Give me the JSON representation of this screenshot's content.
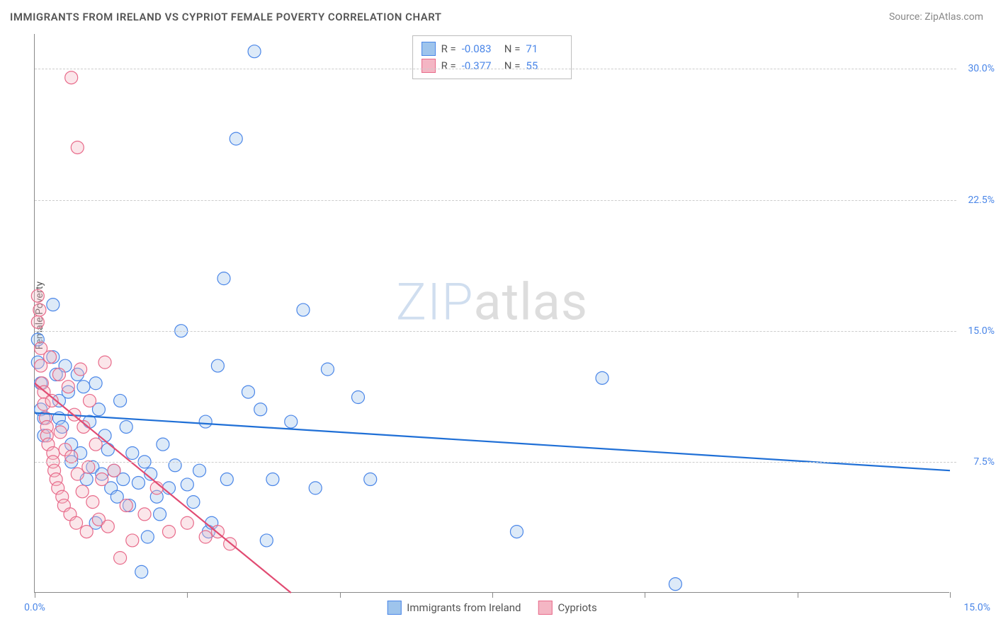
{
  "title": "IMMIGRANTS FROM IRELAND VS CYPRIOT FEMALE POVERTY CORRELATION CHART",
  "source_label": "Source: ZipAtlas.com",
  "ylabel": "Female Poverty",
  "watermark_z": "ZIP",
  "watermark_rest": "atlas",
  "chart": {
    "type": "scatter",
    "xlim": [
      0,
      15
    ],
    "ylim": [
      0,
      32
    ],
    "background_color": "#ffffff",
    "grid_color": "#cccccc",
    "grid_dash": "4,4",
    "axis_color": "#888888",
    "tick_label_color": "#4a86e8",
    "axis_label_color": "#555555",
    "y_gridlines": [
      7.5,
      15.0,
      22.5,
      30.0
    ],
    "y_tick_labels": [
      "7.5%",
      "15.0%",
      "22.5%",
      "30.0%"
    ],
    "x_ticks": [
      0,
      2.5,
      5.0,
      7.5,
      10.0,
      12.5,
      15.0
    ],
    "x_origin_label": "0.0%",
    "x_max_label": "15.0%",
    "marker_radius": 9,
    "marker_stroke_width": 1.2,
    "marker_fill_opacity": 0.35,
    "trend_line_width": 2.2
  },
  "series": [
    {
      "key": "ireland",
      "label": "Immigrants from Ireland",
      "color_fill": "#9ec4ec",
      "color_stroke": "#4a86e8",
      "trend_color": "#1f6fd6",
      "R": "-0.083",
      "N": "71",
      "trend": {
        "x1": 0,
        "y1": 10.3,
        "x2": 15,
        "y2": 7.0
      },
      "points": [
        [
          0.05,
          14.5
        ],
        [
          0.05,
          13.2
        ],
        [
          0.1,
          12.0
        ],
        [
          0.1,
          10.5
        ],
        [
          0.15,
          10.0
        ],
        [
          0.15,
          9.0
        ],
        [
          0.3,
          16.5
        ],
        [
          0.3,
          13.5
        ],
        [
          0.35,
          12.5
        ],
        [
          0.4,
          11.0
        ],
        [
          0.4,
          10.0
        ],
        [
          0.45,
          9.5
        ],
        [
          0.5,
          13.0
        ],
        [
          0.55,
          11.5
        ],
        [
          0.6,
          7.5
        ],
        [
          0.6,
          8.5
        ],
        [
          0.7,
          12.5
        ],
        [
          0.75,
          8.0
        ],
        [
          0.8,
          11.8
        ],
        [
          0.85,
          6.5
        ],
        [
          0.9,
          9.8
        ],
        [
          0.95,
          7.2
        ],
        [
          1.0,
          12.0
        ],
        [
          1.05,
          10.5
        ],
        [
          1.1,
          6.8
        ],
        [
          1.15,
          9.0
        ],
        [
          1.2,
          8.2
        ],
        [
          1.25,
          6.0
        ],
        [
          1.3,
          7.0
        ],
        [
          1.35,
          5.5
        ],
        [
          1.4,
          11.0
        ],
        [
          1.45,
          6.5
        ],
        [
          1.5,
          9.5
        ],
        [
          1.55,
          5.0
        ],
        [
          1.6,
          8.0
        ],
        [
          1.7,
          6.3
        ],
        [
          1.75,
          1.2
        ],
        [
          1.8,
          7.5
        ],
        [
          1.85,
          3.2
        ],
        [
          1.9,
          6.8
        ],
        [
          2.0,
          5.5
        ],
        [
          2.05,
          4.5
        ],
        [
          2.1,
          8.5
        ],
        [
          2.2,
          6.0
        ],
        [
          2.3,
          7.3
        ],
        [
          2.4,
          15.0
        ],
        [
          2.5,
          6.2
        ],
        [
          2.6,
          5.2
        ],
        [
          2.7,
          7.0
        ],
        [
          2.8,
          9.8
        ],
        [
          2.85,
          3.5
        ],
        [
          3.0,
          13.0
        ],
        [
          3.1,
          18.0
        ],
        [
          3.15,
          6.5
        ],
        [
          3.3,
          26.0
        ],
        [
          3.5,
          11.5
        ],
        [
          3.6,
          31.0
        ],
        [
          3.7,
          10.5
        ],
        [
          3.8,
          3.0
        ],
        [
          3.9,
          6.5
        ],
        [
          4.2,
          9.8
        ],
        [
          4.4,
          16.2
        ],
        [
          4.6,
          6.0
        ],
        [
          4.8,
          12.8
        ],
        [
          5.3,
          11.2
        ],
        [
          5.5,
          6.5
        ],
        [
          7.9,
          3.5
        ],
        [
          9.3,
          12.3
        ],
        [
          10.5,
          0.5
        ],
        [
          2.9,
          4.0
        ],
        [
          1.0,
          4.0
        ]
      ]
    },
    {
      "key": "cypriots",
      "label": "Cypriots",
      "color_fill": "#f4b6c4",
      "color_stroke": "#e86a8a",
      "trend_color": "#e14b72",
      "R": "-0.377",
      "N": "55",
      "trend": {
        "x1": 0,
        "y1": 12.0,
        "x2": 4.2,
        "y2": 0
      },
      "points": [
        [
          0.05,
          17.0
        ],
        [
          0.05,
          15.5
        ],
        [
          0.08,
          16.2
        ],
        [
          0.1,
          14.0
        ],
        [
          0.1,
          13.0
        ],
        [
          0.12,
          12.0
        ],
        [
          0.15,
          11.5
        ],
        [
          0.15,
          10.8
        ],
        [
          0.18,
          10.0
        ],
        [
          0.2,
          9.5
        ],
        [
          0.2,
          9.0
        ],
        [
          0.22,
          8.5
        ],
        [
          0.25,
          13.5
        ],
        [
          0.28,
          11.0
        ],
        [
          0.3,
          8.0
        ],
        [
          0.3,
          7.5
        ],
        [
          0.32,
          7.0
        ],
        [
          0.35,
          6.5
        ],
        [
          0.38,
          6.0
        ],
        [
          0.4,
          12.5
        ],
        [
          0.42,
          9.2
        ],
        [
          0.45,
          5.5
        ],
        [
          0.48,
          5.0
        ],
        [
          0.5,
          8.2
        ],
        [
          0.55,
          11.8
        ],
        [
          0.58,
          4.5
        ],
        [
          0.6,
          7.8
        ],
        [
          0.65,
          10.2
        ],
        [
          0.68,
          4.0
        ],
        [
          0.7,
          6.8
        ],
        [
          0.75,
          12.8
        ],
        [
          0.78,
          5.8
        ],
        [
          0.8,
          9.5
        ],
        [
          0.85,
          3.5
        ],
        [
          0.88,
          7.2
        ],
        [
          0.9,
          11.0
        ],
        [
          0.95,
          5.2
        ],
        [
          1.0,
          8.5
        ],
        [
          1.05,
          4.2
        ],
        [
          1.1,
          6.5
        ],
        [
          1.2,
          3.8
        ],
        [
          1.3,
          7.0
        ],
        [
          1.4,
          2.0
        ],
        [
          1.5,
          5.0
        ],
        [
          1.6,
          3.0
        ],
        [
          0.6,
          29.5
        ],
        [
          0.7,
          25.5
        ],
        [
          1.8,
          4.5
        ],
        [
          2.0,
          6.0
        ],
        [
          2.2,
          3.5
        ],
        [
          2.5,
          4.0
        ],
        [
          2.8,
          3.2
        ],
        [
          3.0,
          3.5
        ],
        [
          3.2,
          2.8
        ],
        [
          1.15,
          13.2
        ]
      ]
    }
  ],
  "legend_top": {
    "r_label": "R =",
    "n_label": "N ="
  },
  "legend_bottom_order": [
    "ireland",
    "cypriots"
  ]
}
